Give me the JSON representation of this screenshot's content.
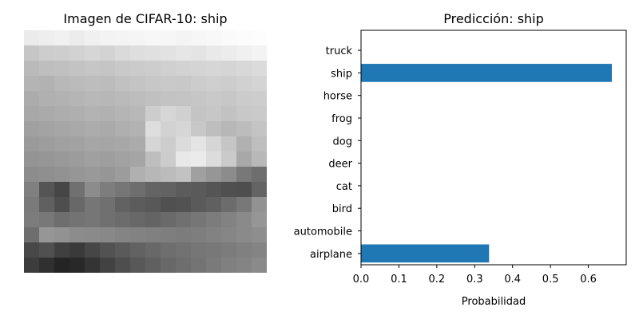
{
  "left_panel": {
    "title": "Imagen de CIFAR-10: ship",
    "image_grid": [
      [
        235,
        238,
        241,
        236,
        240,
        243,
        244,
        245,
        247,
        246,
        244,
        246,
        248,
        250,
        252,
        253
      ],
      [
        198,
        205,
        206,
        210,
        214,
        211,
        218,
        222,
        224,
        226,
        230,
        228,
        233,
        236,
        240,
        243
      ],
      [
        186,
        190,
        192,
        195,
        198,
        197,
        201,
        203,
        205,
        208,
        210,
        212,
        214,
        213,
        216,
        219
      ],
      [
        180,
        178,
        184,
        187,
        189,
        188,
        193,
        196,
        199,
        201,
        200,
        204,
        207,
        205,
        209,
        212
      ],
      [
        172,
        176,
        178,
        181,
        184,
        183,
        186,
        189,
        192,
        195,
        196,
        198,
        201,
        199,
        203,
        205
      ],
      [
        168,
        170,
        173,
        175,
        179,
        177,
        181,
        184,
        205,
        214,
        208,
        196,
        199,
        194,
        200,
        202
      ],
      [
        160,
        163,
        166,
        169,
        172,
        170,
        175,
        178,
        222,
        210,
        214,
        200,
        190,
        183,
        188,
        196
      ],
      [
        154,
        157,
        160,
        162,
        166,
        165,
        168,
        171,
        214,
        205,
        219,
        228,
        214,
        198,
        176,
        190
      ],
      [
        148,
        150,
        153,
        156,
        160,
        158,
        162,
        165,
        190,
        204,
        232,
        235,
        220,
        202,
        168,
        184
      ],
      [
        140,
        143,
        146,
        150,
        153,
        150,
        156,
        176,
        183,
        188,
        194,
        160,
        150,
        140,
        120,
        110
      ],
      [
        128,
        85,
        70,
        112,
        140,
        125,
        118,
        110,
        100,
        98,
        92,
        90,
        85,
        80,
        78,
        100
      ],
      [
        122,
        96,
        78,
        104,
        118,
        112,
        98,
        92,
        88,
        80,
        82,
        90,
        96,
        108,
        120,
        146
      ],
      [
        124,
        120,
        110,
        115,
        118,
        112,
        108,
        104,
        100,
        106,
        112,
        118,
        124,
        130,
        138,
        150
      ],
      [
        110,
        150,
        146,
        140,
        138,
        136,
        132,
        130,
        128,
        126,
        124,
        126,
        130,
        134,
        138,
        142
      ],
      [
        72,
        80,
        64,
        58,
        70,
        82,
        90,
        98,
        104,
        110,
        114,
        118,
        120,
        124,
        128,
        132
      ],
      [
        60,
        48,
        36,
        40,
        52,
        66,
        78,
        88,
        96,
        104,
        110,
        116,
        122,
        128,
        132,
        138
      ]
    ]
  },
  "chart_data": {
    "type": "bar",
    "orientation": "horizontal",
    "title": "Predicción: ship",
    "xlabel": "Probabilidad",
    "ylabel": "",
    "categories": [
      "airplane",
      "automobile",
      "bird",
      "cat",
      "deer",
      "dog",
      "frog",
      "horse",
      "ship",
      "truck"
    ],
    "values": [
      0.338,
      0.0,
      0.0,
      0.0,
      0.0,
      0.0,
      0.0,
      0.0,
      0.662,
      0.0
    ],
    "xlim": [
      0,
      0.7
    ],
    "xticks": [
      "0.0",
      "0.1",
      "0.2",
      "0.3",
      "0.4",
      "0.5",
      "0.6"
    ],
    "bar_color": "#1f77b4",
    "grid": false
  }
}
